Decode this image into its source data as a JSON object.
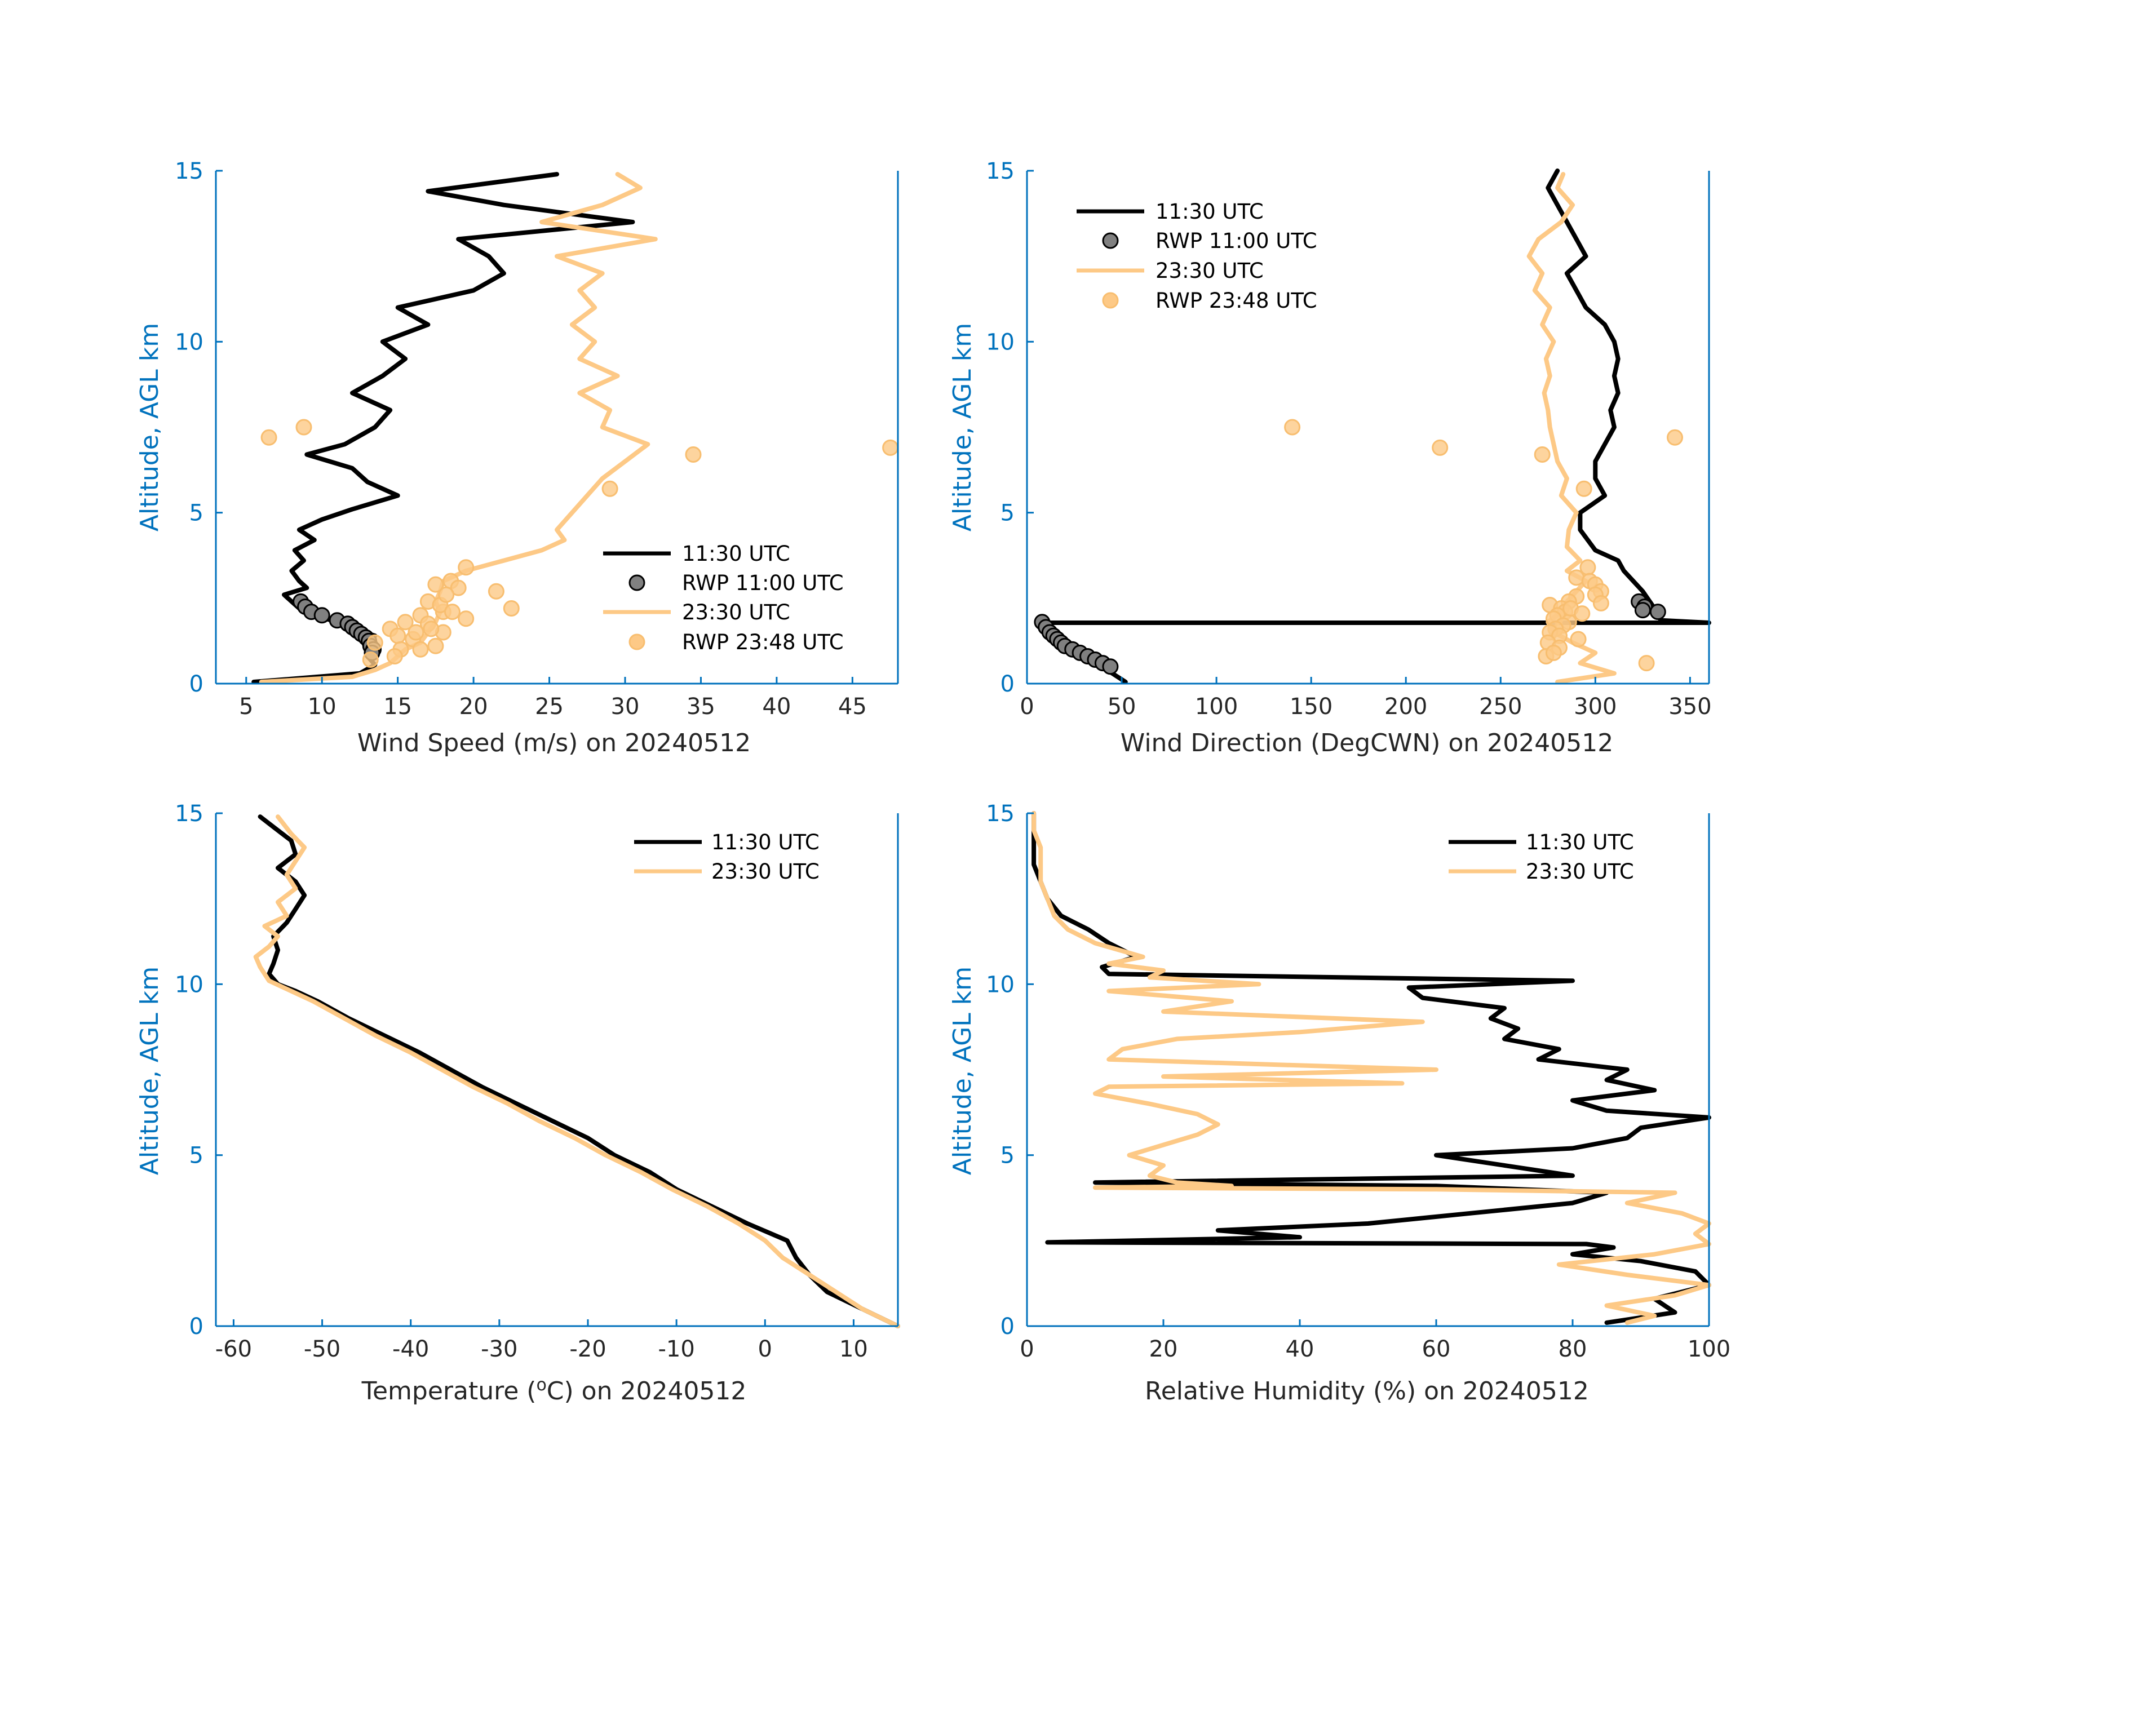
{
  "colors": {
    "obs_1130": "#000000",
    "obs_2330": "#FDC986",
    "rwp_1100": "#808080",
    "axis": "#0072BD",
    "tick_text": "#262626"
  },
  "chart_data": [
    {
      "id": "wind-speed",
      "type": "line",
      "xlabel": "Wind Speed (m/s) on 20240512",
      "ylabel": "Altitude, AGL km",
      "xlim": [
        3,
        48
      ],
      "ylim": [
        0,
        15
      ],
      "xticks": [
        5,
        10,
        15,
        20,
        25,
        30,
        35,
        40,
        45
      ],
      "yticks": [
        0,
        5,
        10,
        15
      ],
      "legend_position": "bottom-right",
      "series": [
        {
          "name": "11:30 UTC",
          "kind": "line",
          "color": "#000000",
          "y": [
            0.05,
            0.3,
            0.55,
            0.8,
            1.0,
            1.2,
            1.4,
            1.6,
            1.8,
            2.0,
            2.2,
            2.4,
            2.6,
            2.8,
            3.0,
            3.3,
            3.6,
            3.9,
            4.2,
            4.5,
            4.8,
            5.1,
            5.5,
            5.9,
            6.3,
            6.7,
            7.0,
            7.5,
            8.0,
            8.5,
            9.0,
            9.5,
            10.0,
            10.5,
            11.0,
            11.5,
            12.0,
            12.5,
            13.0,
            13.5,
            14.0,
            14.4,
            14.9
          ],
          "x": [
            5.5,
            12.5,
            13.5,
            13.0,
            13.2,
            12.8,
            13.5,
            12.0,
            11.0,
            9.5,
            8.5,
            8.0,
            7.5,
            9.0,
            8.5,
            8.0,
            8.8,
            8.2,
            9.5,
            8.5,
            10.0,
            12.0,
            15.0,
            13.0,
            12.0,
            9.0,
            11.5,
            13.5,
            14.5,
            12.0,
            14.0,
            15.5,
            14.0,
            17.0,
            15.0,
            20.0,
            22.0,
            21.0,
            19.0,
            30.5,
            22.0,
            17.0,
            25.5
          ]
        },
        {
          "name": "RWP 11:00 UTC",
          "kind": "scatter",
          "color": "#808080",
          "x": [
            8.6,
            8.9,
            9.3,
            10.0,
            11.0,
            11.7,
            12.0,
            12.3,
            12.6,
            12.9,
            13.1,
            13.2,
            13.4,
            13.3
          ],
          "y": [
            2.4,
            2.25,
            2.1,
            2.0,
            1.85,
            1.75,
            1.65,
            1.55,
            1.45,
            1.35,
            1.25,
            1.1,
            1.0,
            0.9
          ]
        },
        {
          "name": "23:30 UTC",
          "kind": "line",
          "color": "#FDC986",
          "y": [
            0.05,
            0.2,
            0.4,
            0.6,
            0.8,
            1.0,
            1.2,
            1.5,
            1.8,
            2.1,
            2.4,
            2.7,
            3.0,
            3.3,
            3.6,
            3.9,
            4.2,
            4.5,
            5.0,
            5.5,
            6.0,
            6.5,
            7.0,
            7.5,
            8.0,
            8.5,
            9.0,
            9.5,
            10.0,
            10.5,
            11.0,
            11.5,
            12.0,
            12.5,
            13.0,
            13.5,
            14.0,
            14.5,
            14.9
          ],
          "x": [
            6.0,
            12.0,
            13.5,
            14.5,
            15.0,
            15.5,
            16.5,
            17.0,
            17.5,
            17.8,
            17.5,
            17.8,
            18.0,
            19.5,
            22.0,
            24.5,
            26.0,
            25.5,
            26.5,
            27.5,
            28.5,
            30.0,
            31.5,
            28.5,
            29.0,
            27.0,
            29.5,
            27.0,
            28.0,
            26.5,
            28.0,
            27.0,
            28.5,
            25.5,
            32.0,
            24.5,
            28.5,
            31.0,
            29.5
          ]
        },
        {
          "name": "RWP 23:48 UTC",
          "kind": "scatter",
          "color": "#FDC986",
          "x": [
            6.5,
            8.8,
            34.5,
            29.0,
            47.5,
            19.5,
            17.5,
            18.5,
            21.5,
            22.5,
            17.0,
            18.0,
            16.5,
            19.5,
            15.5,
            17.0,
            14.5,
            18.0,
            15.0,
            16.0,
            13.5,
            17.5,
            16.5,
            19.0,
            17.8,
            18.2,
            16.2,
            15.2,
            18.6,
            17.2,
            14.8,
            13.2
          ],
          "y": [
            7.2,
            7.5,
            6.7,
            5.7,
            6.9,
            3.4,
            2.9,
            3.0,
            2.7,
            2.2,
            2.4,
            2.1,
            2.0,
            1.9,
            1.8,
            1.75,
            1.6,
            1.5,
            1.4,
            1.3,
            1.2,
            1.1,
            1.0,
            2.8,
            2.3,
            2.6,
            1.5,
            1.0,
            2.1,
            1.6,
            0.8,
            0.7
          ]
        }
      ]
    },
    {
      "id": "wind-direction",
      "type": "line",
      "xlabel": "Wind Direction (DegCWN) on 20240512",
      "ylabel": "Altitude, AGL km",
      "xlim": [
        0,
        360
      ],
      "ylim": [
        0,
        15
      ],
      "xticks": [
        0,
        50,
        100,
        150,
        200,
        250,
        300,
        350
      ],
      "yticks": [
        0,
        5,
        10,
        15
      ],
      "legend_position": "top-left",
      "series": [
        {
          "name": "11:30 UTC",
          "kind": "line",
          "color": "#000000",
          "y": [
            0.05,
            0.3,
            0.6,
            0.9,
            1.2,
            1.5,
            1.75,
            1.78,
            1.78,
            1.85,
            2.0,
            2.3,
            2.7,
            3.0,
            3.3,
            3.6,
            3.9,
            4.2,
            4.5,
            5.0,
            5.5,
            6.0,
            6.5,
            7.0,
            7.5,
            8.0,
            8.5,
            9.0,
            9.5,
            10.0,
            10.5,
            11.0,
            11.5,
            12.0,
            12.5,
            13.0,
            13.5,
            14.0,
            14.5,
            15.0
          ],
          "x": [
            52,
            45,
            38,
            28,
            18,
            12,
            8,
            5,
            360,
            335,
            332,
            330,
            325,
            320,
            315,
            312,
            300,
            296,
            292,
            292,
            305,
            300,
            300,
            305,
            310,
            308,
            312,
            310,
            312,
            310,
            305,
            295,
            290,
            285,
            295,
            290,
            285,
            280,
            275,
            280
          ]
        },
        {
          "name": "RWP 11:00 UTC",
          "kind": "scatter",
          "color": "#808080",
          "x": [
            8,
            10,
            12,
            14,
            16,
            18,
            20,
            24,
            28,
            32,
            36,
            40,
            44,
            323,
            326,
            333,
            325
          ],
          "y": [
            1.8,
            1.65,
            1.5,
            1.4,
            1.3,
            1.2,
            1.1,
            1.0,
            0.9,
            0.8,
            0.7,
            0.6,
            0.5,
            2.4,
            2.25,
            2.1,
            2.15
          ]
        },
        {
          "name": "23:30 UTC",
          "kind": "line",
          "color": "#FDC986",
          "y": [
            0.05,
            0.3,
            0.6,
            0.9,
            1.2,
            1.5,
            1.8,
            2.1,
            2.4,
            2.7,
            3.0,
            3.3,
            3.6,
            4.0,
            4.5,
            5.0,
            5.5,
            6.0,
            6.5,
            7.0,
            7.5,
            8.0,
            8.5,
            9.0,
            9.5,
            10.0,
            10.5,
            11.0,
            11.5,
            12.0,
            12.5,
            13.0,
            13.5,
            14.0,
            14.5,
            14.9
          ],
          "x": [
            280,
            310,
            292,
            300,
            288,
            278,
            275,
            282,
            285,
            290,
            295,
            285,
            292,
            285,
            286,
            290,
            282,
            285,
            280,
            278,
            276,
            275,
            273,
            276,
            274,
            278,
            272,
            276,
            268,
            272,
            265,
            270,
            282,
            288,
            280,
            283
          ]
        },
        {
          "name": "RWP 23:48 UTC",
          "kind": "scatter",
          "color": "#FDC986",
          "x": [
            140,
            218,
            342,
            272,
            294,
            296,
            290,
            297,
            300,
            303,
            290,
            286,
            276,
            282,
            284,
            280,
            278,
            286,
            283,
            279,
            276,
            281,
            275,
            300,
            287,
            291,
            327,
            303,
            293,
            281,
            274,
            278
          ],
          "y": [
            7.5,
            6.9,
            7.2,
            6.7,
            5.7,
            3.4,
            3.1,
            3.0,
            2.9,
            2.7,
            2.55,
            2.4,
            2.3,
            2.2,
            2.1,
            2.0,
            1.9,
            1.8,
            1.7,
            1.6,
            1.5,
            1.4,
            1.2,
            2.6,
            2.2,
            1.3,
            0.6,
            2.35,
            2.05,
            1.05,
            0.8,
            0.9
          ]
        }
      ]
    },
    {
      "id": "temperature",
      "type": "line",
      "xlabel_parts": [
        "Temperature (",
        "o",
        "C) on 20240512"
      ],
      "ylabel": "Altitude, AGL km",
      "xlim": [
        -62,
        15
      ],
      "ylim": [
        0,
        15
      ],
      "xticks": [
        -60,
        -50,
        -40,
        -30,
        -20,
        -10,
        0,
        10
      ],
      "yticks": [
        0,
        5,
        10,
        15
      ],
      "legend_position": "top-right",
      "series": [
        {
          "name": "11:30 UTC",
          "kind": "line",
          "color": "#000000",
          "y": [
            0.0,
            0.5,
            1.0,
            1.5,
            2.0,
            2.5,
            3.0,
            3.5,
            4.0,
            4.5,
            5.0,
            5.5,
            6.0,
            6.5,
            7.0,
            7.5,
            8.0,
            8.5,
            9.0,
            9.5,
            9.8,
            10.0,
            10.3,
            10.6,
            11.0,
            11.4,
            11.8,
            12.2,
            12.6,
            13.0,
            13.4,
            13.8,
            14.2,
            14.6,
            14.9
          ],
          "x": [
            15,
            11,
            7,
            5,
            3.5,
            2.5,
            -2,
            -6,
            -10,
            -13,
            -17,
            -20,
            -24,
            -28,
            -32,
            -35.5,
            -39,
            -43,
            -47,
            -50.5,
            -53,
            -55,
            -56,
            -55.5,
            -55,
            -55.5,
            -54,
            -53,
            -52,
            -53,
            -55,
            -53,
            -53.5,
            -55.5,
            -57
          ]
        },
        {
          "name": "23:30 UTC",
          "kind": "line",
          "color": "#FDC986",
          "y": [
            0.0,
            0.5,
            1.0,
            1.5,
            2.0,
            2.5,
            3.0,
            3.5,
            4.0,
            4.5,
            5.0,
            5.5,
            6.0,
            6.5,
            7.0,
            7.5,
            8.0,
            8.5,
            9.0,
            9.5,
            9.8,
            10.1,
            10.5,
            10.8,
            11.1,
            11.4,
            11.7,
            12.0,
            12.4,
            12.8,
            13.2,
            13.6,
            14.0,
            14.4,
            14.9
          ],
          "x": [
            15,
            11,
            8,
            5,
            2,
            0,
            -3,
            -6.5,
            -10.5,
            -14,
            -18,
            -21.5,
            -25.5,
            -29,
            -33,
            -36.5,
            -40,
            -44,
            -47.5,
            -51,
            -53.5,
            -56,
            -57,
            -57.5,
            -56,
            -55,
            -56.5,
            -54,
            -55,
            -53,
            -54,
            -53,
            -52,
            -53.5,
            -55
          ]
        }
      ]
    },
    {
      "id": "relative-humidity",
      "type": "line",
      "xlabel": "Relative Humidity (%) on 20240512",
      "ylabel": "Altitude, AGL km",
      "xlim": [
        0,
        100
      ],
      "ylim": [
        0,
        15
      ],
      "xticks": [
        0,
        20,
        40,
        60,
        80,
        100
      ],
      "yticks": [
        0,
        5,
        10,
        15
      ],
      "legend_position": "top-right",
      "series": [
        {
          "name": "11:30 UTC",
          "kind": "line",
          "color": "#000000",
          "y": [
            0.1,
            0.4,
            0.8,
            1.2,
            1.6,
            1.9,
            2.1,
            2.3,
            2.4,
            2.45,
            2.6,
            2.8,
            3.0,
            3.3,
            3.6,
            3.9,
            4.1,
            4.2,
            4.4,
            4.7,
            5.0,
            5.2,
            5.5,
            5.8,
            6.1,
            6.3,
            6.6,
            6.9,
            7.2,
            7.5,
            7.8,
            8.1,
            8.4,
            8.7,
            9.0,
            9.3,
            9.6,
            9.9,
            10.1,
            10.3,
            10.5,
            10.8,
            11.2,
            11.6,
            12.0,
            12.5,
            13.0,
            13.5,
            14.0,
            14.5,
            15.0
          ],
          "x": [
            85,
            95,
            92,
            100,
            98,
            90,
            80,
            86,
            82,
            3,
            40,
            28,
            50,
            65,
            80,
            85,
            60,
            10,
            80,
            70,
            60,
            80,
            88,
            90,
            100,
            85,
            80,
            92,
            85,
            88,
            75,
            78,
            70,
            72,
            68,
            70,
            58,
            56,
            80,
            12,
            11,
            16,
            12,
            9,
            5,
            3,
            2,
            1,
            1,
            1,
            1
          ]
        },
        {
          "name": "23:30 UTC",
          "kind": "line",
          "color": "#FDC986",
          "y": [
            0.1,
            0.3,
            0.6,
            0.9,
            1.2,
            1.5,
            1.8,
            2.1,
            2.4,
            2.7,
            3.0,
            3.3,
            3.6,
            3.9,
            4.0,
            4.05,
            4.1,
            4.2,
            4.4,
            4.7,
            5.0,
            5.3,
            5.6,
            5.9,
            6.2,
            6.5,
            6.8,
            7.0,
            7.1,
            7.3,
            7.5,
            7.8,
            8.1,
            8.4,
            8.6,
            8.9,
            9.2,
            9.5,
            9.8,
            10.0,
            10.2,
            10.4,
            10.6,
            10.8,
            11.2,
            11.6,
            12.0,
            12.5,
            13.0,
            13.5,
            14.0,
            14.5,
            15.0
          ],
          "x": [
            88,
            92,
            85,
            95,
            100,
            88,
            78,
            92,
            100,
            98,
            100,
            96,
            88,
            95,
            60,
            10,
            30,
            22,
            18,
            20,
            15,
            20,
            25,
            28,
            25,
            18,
            10,
            12,
            55,
            20,
            60,
            12,
            14,
            22,
            40,
            58,
            20,
            30,
            12,
            34,
            18,
            20,
            12,
            17,
            10,
            6,
            4,
            3,
            2,
            2,
            2,
            1,
            1
          ]
        }
      ]
    }
  ]
}
